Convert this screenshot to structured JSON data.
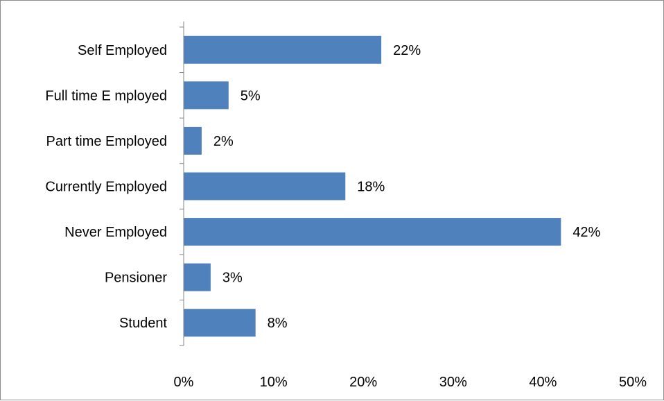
{
  "chart_data": {
    "type": "bar",
    "orientation": "horizontal",
    "categories": [
      "Self Employed",
      "Full time E mployed",
      "Part time Employed",
      "Currently Employed",
      "Never Employed",
      "Pensioner",
      "Student"
    ],
    "values": [
      22,
      5,
      2,
      18,
      42,
      3,
      8
    ],
    "data_labels": [
      "22%",
      "5%",
      "2%",
      "18%",
      "42%",
      "3%",
      "8%"
    ],
    "x_ticks": [
      0,
      10,
      20,
      30,
      40,
      50
    ],
    "x_tick_labels": [
      "0%",
      "10%",
      "20%",
      "30%",
      "40%",
      "50%"
    ],
    "xlim": [
      0,
      50
    ],
    "title": "",
    "xlabel": "",
    "ylabel": "",
    "grid": false,
    "legend": "none",
    "bar_color": "#4f81bd",
    "axis_color": "#868686",
    "border_color": "#8c8c8c"
  }
}
